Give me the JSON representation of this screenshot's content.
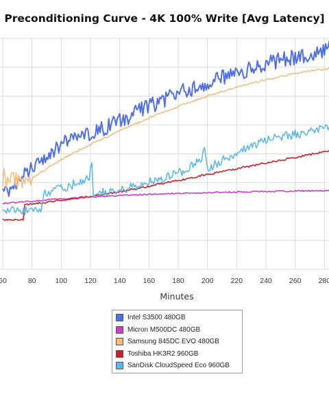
{
  "chart_data": {
    "type": "line",
    "title": "Preconditioning Curve - 4K 100% Write [Avg Latency]",
    "xlabel": "Minutes",
    "ylabel": "",
    "xlim": [
      60,
      285
    ],
    "ylim": [
      0,
      10
    ],
    "x_ticks": [
      60,
      80,
      100,
      120,
      140,
      160,
      180,
      200,
      220,
      240,
      260,
      280
    ],
    "x_tick_labels": [
      "60",
      "80",
      "100",
      "120",
      "140",
      "160",
      "180",
      "200",
      "220",
      "240",
      "260",
      "280"
    ],
    "grid": true,
    "legend_position": "bottom-center",
    "series": [
      {
        "name": "Intel S3500 480GB",
        "color": "#4f6fe6",
        "x": [
          60,
          65,
          70,
          80,
          90,
          100,
          110,
          120,
          130,
          140,
          150,
          160,
          170,
          180,
          190,
          200,
          210,
          220,
          230,
          240,
          250,
          260,
          270,
          280,
          285
        ],
        "y": [
          3.28,
          3.55,
          3.85,
          4.4,
          4.95,
          5.4,
          5.65,
          5.85,
          6.15,
          6.45,
          6.75,
          7.05,
          7.3,
          7.6,
          7.85,
          8.05,
          8.3,
          8.5,
          8.7,
          8.9,
          9.05,
          9.2,
          9.35,
          9.5,
          9.55
        ]
      },
      {
        "name": "Micron M500DC 480GB",
        "color": "#d13dc2",
        "x": [
          60,
          70,
          80,
          90,
          100,
          110,
          120,
          140,
          160,
          180,
          200,
          220,
          240,
          260,
          285
        ],
        "y": [
          2.85,
          2.9,
          2.95,
          3.0,
          3.05,
          3.1,
          3.13,
          3.2,
          3.25,
          3.29,
          3.32,
          3.35,
          3.37,
          3.39,
          3.4
        ]
      },
      {
        "name": "Samsung 845DC EVO 480GB",
        "color": "#f0be82",
        "x": [
          60,
          70,
          80,
          90,
          100,
          110,
          120,
          130,
          140,
          150,
          160,
          170,
          180,
          190,
          200,
          210,
          220,
          230,
          240,
          250,
          260,
          270,
          280,
          285
        ],
        "y": [
          3.95,
          3.9,
          3.95,
          4.35,
          4.75,
          5.1,
          5.4,
          5.7,
          6.0,
          6.28,
          6.55,
          6.8,
          7.05,
          7.28,
          7.5,
          7.7,
          7.9,
          8.05,
          8.2,
          8.35,
          8.48,
          8.6,
          8.68,
          8.7
        ]
      },
      {
        "name": "Toshiba HK3R2 960GB",
        "color": "#c4232b",
        "x": [
          60,
          74,
          75,
          90,
          100,
          110,
          120,
          140,
          160,
          180,
          200,
          220,
          240,
          260,
          285
        ],
        "y": [
          2.15,
          2.15,
          2.8,
          2.9,
          3.0,
          3.08,
          3.15,
          3.35,
          3.6,
          3.85,
          4.1,
          4.35,
          4.6,
          4.85,
          5.15
        ]
      },
      {
        "name": "SanDisk CloudSpeed Eco 960GB",
        "color": "#5cb8e6",
        "x": [
          60,
          86,
          88,
          100,
          110,
          119,
          120,
          121,
          122,
          140,
          160,
          180,
          196,
          198,
          201,
          205,
          220,
          240,
          260,
          285
        ],
        "y": [
          2.55,
          2.55,
          3.25,
          3.5,
          3.7,
          3.9,
          4.3,
          4.5,
          3.25,
          3.45,
          3.75,
          4.15,
          4.75,
          5.25,
          4.25,
          4.55,
          5.05,
          5.6,
          5.85,
          6.2
        ]
      }
    ]
  }
}
